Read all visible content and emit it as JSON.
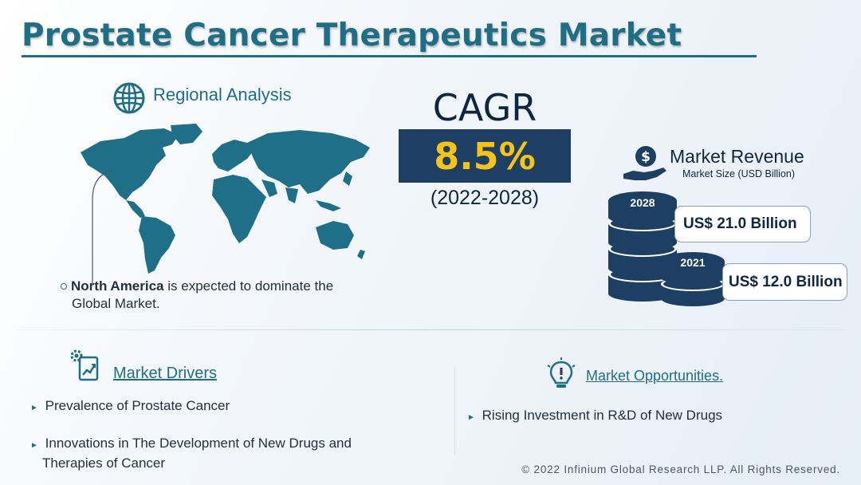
{
  "title": "Prostate Cancer Therapeutics Market",
  "regional": {
    "heading": "Regional Analysis",
    "icon": "globe-icon",
    "note_bold": "North America",
    "note_rest": " is expected to dominate the",
    "note_line2": "Global Market."
  },
  "cagr": {
    "label": "CAGR",
    "value": "8.5%",
    "period": "(2022-2028)"
  },
  "revenue": {
    "heading": "Market Revenue",
    "subheading": "Market Size (USD Billion)",
    "icon": "dollar-hand-icon",
    "items": [
      {
        "year": "2028",
        "value": "US$ 21.0 Billion"
      },
      {
        "year": "2021",
        "value": "US$ 12.0 Billion"
      }
    ]
  },
  "drivers": {
    "heading": "Market Drivers",
    "icon": "gear-chart-icon",
    "items": [
      "Prevalence of Prostate Cancer",
      "Innovations in The Development of New Drugs and",
      "Therapies of Cancer"
    ]
  },
  "opportunities": {
    "heading": "Market Opportunities.",
    "icon": "lightbulb-icon",
    "items": [
      "Rising Investment in R&D of New Drugs"
    ]
  },
  "footer": "© 2022 Infinium Global Research LLP. All Rights Reserved.",
  "colors": {
    "teal": "#1f6e86",
    "navy": "#1c3f63",
    "gold": "#f5c31a",
    "map": "#1e6f87"
  }
}
